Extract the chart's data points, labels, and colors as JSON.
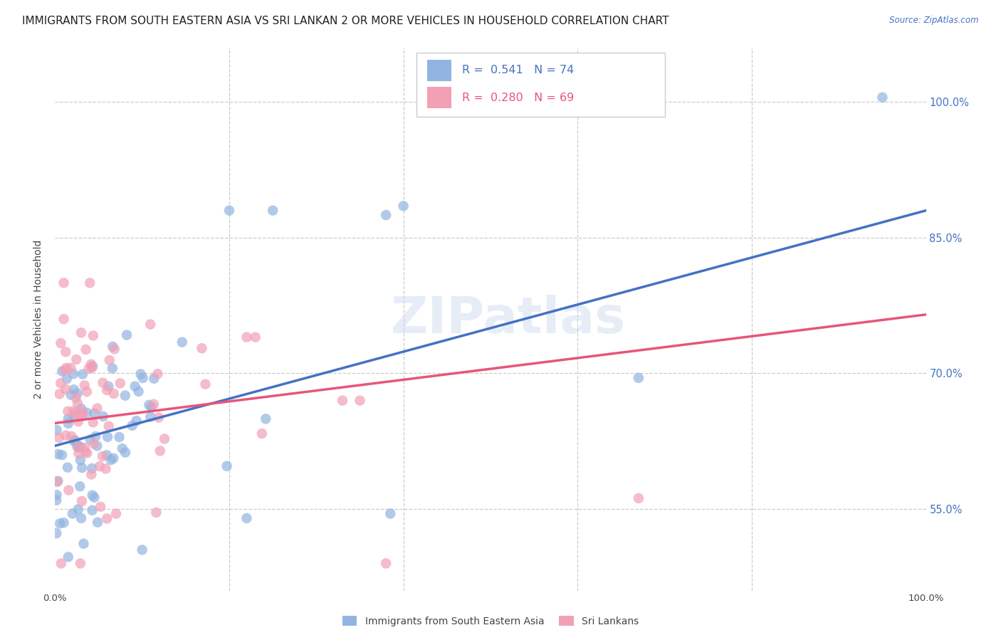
{
  "title": "IMMIGRANTS FROM SOUTH EASTERN ASIA VS SRI LANKAN 2 OR MORE VEHICLES IN HOUSEHOLD CORRELATION CHART",
  "source": "Source: ZipAtlas.com",
  "ylabel": "2 or more Vehicles in Household",
  "xlim": [
    0.0,
    1.0
  ],
  "ylim": [
    0.46,
    1.06
  ],
  "x_ticks": [
    0.0,
    0.2,
    0.4,
    0.6,
    0.8,
    1.0
  ],
  "x_tick_labels": [
    "0.0%",
    "",
    "",
    "",
    "",
    "100.0%"
  ],
  "y_tick_labels": [
    "55.0%",
    "70.0%",
    "85.0%",
    "100.0%"
  ],
  "y_ticks": [
    0.55,
    0.7,
    0.85,
    1.0
  ],
  "blue_color": "#4472c4",
  "pink_color": "#e8557a",
  "blue_scatter_color": "#92b4e0",
  "pink_scatter_color": "#f2a0b5",
  "blue_R": 0.541,
  "blue_N": 74,
  "pink_R": 0.28,
  "pink_N": 69,
  "blue_line_x0": 0.0,
  "blue_line_y0": 0.62,
  "blue_line_x1": 1.0,
  "blue_line_y1": 0.88,
  "pink_line_x0": 0.0,
  "pink_line_y0": 0.645,
  "pink_line_x1": 1.0,
  "pink_line_y1": 0.765,
  "watermark": "ZIPatlas",
  "title_fontsize": 11,
  "label_fontsize": 10,
  "tick_fontsize": 9.5,
  "right_tick_color": "#4472c4",
  "background_color": "#ffffff",
  "grid_color": "#cccccc"
}
